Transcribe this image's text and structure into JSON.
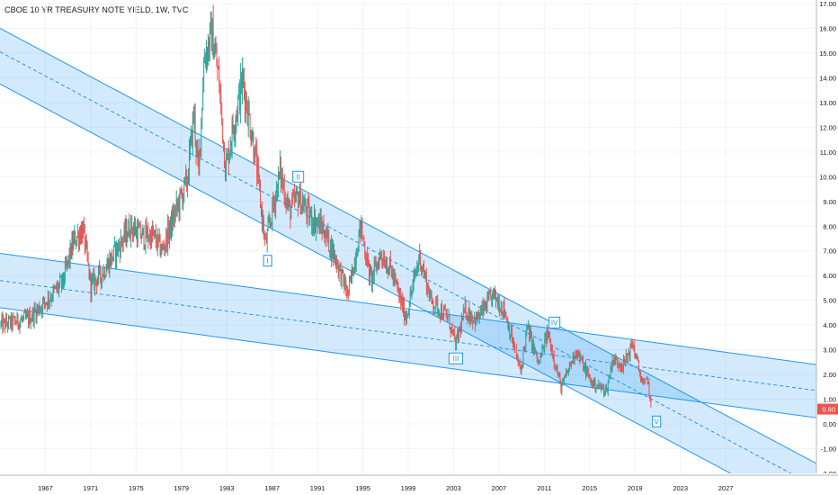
{
  "chart_data": {
    "type": "candlestick",
    "title": "CBOE 10 YR TREASURY NOTE YIELD, 1W, TVC",
    "last_value_label": "0.60",
    "x_range": [
      1963.0,
      2035.0
    ],
    "y_range": [
      -2.0,
      17.0
    ],
    "x_ticks": [
      {
        "label": "1967",
        "value": 1967
      },
      {
        "label": "1971",
        "value": 1971
      },
      {
        "label": "1975",
        "value": 1975
      },
      {
        "label": "1979",
        "value": 1979
      },
      {
        "label": "1983",
        "value": 1983
      },
      {
        "label": "1987",
        "value": 1987
      },
      {
        "label": "1991",
        "value": 1991
      },
      {
        "label": "1995",
        "value": 1995
      },
      {
        "label": "1999",
        "value": 1999
      },
      {
        "label": "2003",
        "value": 2003
      },
      {
        "label": "2007",
        "value": 2007
      },
      {
        "label": "2011",
        "value": 2011
      },
      {
        "label": "2015",
        "value": 2015
      },
      {
        "label": "2019",
        "value": 2019
      },
      {
        "label": "2023",
        "value": 2023
      },
      {
        "label": "2027",
        "value": 2027
      }
    ],
    "y_ticks": [
      {
        "label": "17.00",
        "value": 17
      },
      {
        "label": "16.00",
        "value": 16
      },
      {
        "label": "15.00",
        "value": 15
      },
      {
        "label": "14.00",
        "value": 14
      },
      {
        "label": "13.00",
        "value": 13
      },
      {
        "label": "12.00",
        "value": 12
      },
      {
        "label": "11.00",
        "value": 11
      },
      {
        "label": "10.00",
        "value": 10
      },
      {
        "label": "9.00",
        "value": 9
      },
      {
        "label": "8.00",
        "value": 8
      },
      {
        "label": "7.00",
        "value": 7
      },
      {
        "label": "6.00",
        "value": 6
      },
      {
        "label": "5.00",
        "value": 5
      },
      {
        "label": "4.00",
        "value": 4
      },
      {
        "label": "3.00",
        "value": 3
      },
      {
        "label": "2.00",
        "value": 2
      },
      {
        "label": "1.00",
        "value": 1
      },
      {
        "label": "0.00",
        "value": 0
      },
      {
        "label": "-1.00",
        "value": -1
      },
      {
        "label": "-2.00",
        "value": -2
      }
    ],
    "price_path": [
      [
        1963.0,
        4.0
      ],
      [
        1965.5,
        4.25
      ],
      [
        1966.5,
        4.7
      ],
      [
        1967.5,
        5.2
      ],
      [
        1968.5,
        5.7
      ],
      [
        1969.5,
        7.4
      ],
      [
        1970.3,
        7.9
      ],
      [
        1971.0,
        5.6
      ],
      [
        1972.0,
        6.1
      ],
      [
        1973.5,
        7.2
      ],
      [
        1974.5,
        8.0
      ],
      [
        1975.5,
        7.6
      ],
      [
        1976.5,
        7.6
      ],
      [
        1977.3,
        7.0
      ],
      [
        1978.5,
        8.6
      ],
      [
        1979.5,
        9.8
      ],
      [
        1980.1,
        12.6
      ],
      [
        1980.5,
        10.0
      ],
      [
        1981.0,
        14.8
      ],
      [
        1981.7,
        15.8
      ],
      [
        1982.3,
        13.9
      ],
      [
        1982.9,
        10.3
      ],
      [
        1983.5,
        11.9
      ],
      [
        1984.4,
        13.9
      ],
      [
        1985.5,
        10.9
      ],
      [
        1986.4,
        7.2
      ],
      [
        1987.7,
        10.2
      ],
      [
        1988.5,
        8.6
      ],
      [
        1989.3,
        9.2
      ],
      [
        1990.3,
        8.4
      ],
      [
        1991.5,
        7.9
      ],
      [
        1992.5,
        6.8
      ],
      [
        1993.7,
        5.2
      ],
      [
        1994.8,
        8.0
      ],
      [
        1995.7,
        5.8
      ],
      [
        1996.6,
        6.9
      ],
      [
        1997.5,
        6.2
      ],
      [
        1998.8,
        4.3
      ],
      [
        2000.0,
        6.8
      ],
      [
        2001.0,
        5.0
      ],
      [
        2002.5,
        4.3
      ],
      [
        2003.2,
        3.2
      ],
      [
        2004.0,
        4.6
      ],
      [
        2005.0,
        4.2
      ],
      [
        2006.5,
        5.2
      ],
      [
        2007.5,
        4.6
      ],
      [
        2008.9,
        2.1
      ],
      [
        2009.5,
        3.9
      ],
      [
        2010.5,
        2.4
      ],
      [
        2011.3,
        3.7
      ],
      [
        2012.5,
        1.45
      ],
      [
        2013.8,
        3.0
      ],
      [
        2014.6,
        2.2
      ],
      [
        2015.2,
        1.65
      ],
      [
        2016.5,
        1.35
      ],
      [
        2017.0,
        2.6
      ],
      [
        2018.0,
        2.4
      ],
      [
        2018.8,
        3.25
      ],
      [
        2019.5,
        1.9
      ],
      [
        2019.8,
        1.5
      ],
      [
        2020.1,
        1.9
      ],
      [
        2020.4,
        0.6
      ]
    ],
    "channels": [
      {
        "name": "",
        "lines": [
          {
            "kind": "upper",
            "start": [
              1963.0,
              16.0
            ],
            "end": [
              2035.0,
              -1.6
            ]
          },
          {
            "kind": "mid",
            "start": [
              1963.0,
              15.05
            ],
            "end": [
              2035.0,
              -2.55
            ]
          },
          {
            "kind": "lower",
            "start": [
              1963.0,
              13.75
            ],
            "end": [
              2035.0,
              -3.85
            ]
          }
        ]
      },
      {
        "name": "",
        "lines": [
          {
            "kind": "upper",
            "start": [
              1963.0,
              6.9
            ],
            "end": [
              2035.0,
              2.4
            ]
          },
          {
            "kind": "mid",
            "start": [
              1963.0,
              5.8
            ],
            "end": [
              2035.0,
              1.35
            ]
          },
          {
            "kind": "lower",
            "start": [
              1963.0,
              4.7
            ],
            "end": [
              2035.0,
              0.25
            ]
          }
        ]
      }
    ],
    "wave_labels": [
      {
        "label": "I",
        "at": [
          1986.6,
          6.6
        ]
      },
      {
        "label": "II",
        "at": [
          1989.3,
          10.0
        ]
      },
      {
        "label": "III",
        "at": [
          2003.2,
          2.65
        ]
      },
      {
        "label": "IV",
        "at": [
          2011.9,
          4.1
        ]
      },
      {
        "label": "V",
        "at": [
          2020.9,
          0.1
        ]
      }
    ],
    "colors": {
      "up": "#26a69a",
      "down": "#ef5350",
      "channel_line": "#2196f3",
      "channel_fill": "rgba(33,150,243,0.20)",
      "axis_text": "#131722",
      "grid": "#f0f3fa",
      "last_value_bg": "#ef5350"
    }
  }
}
